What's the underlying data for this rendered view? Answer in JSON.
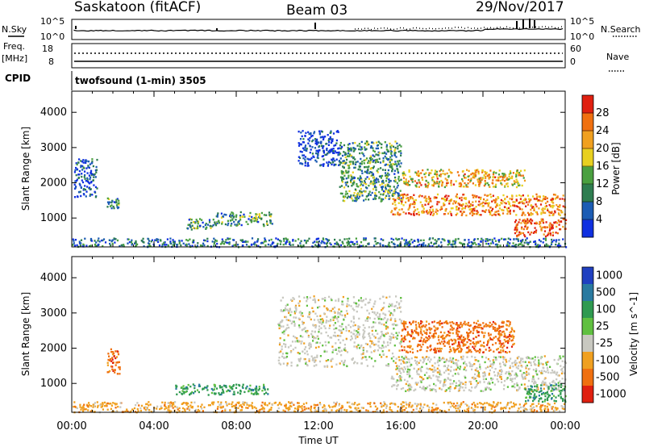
{
  "header": {
    "station": "Saskatoon (fitACF)",
    "beam": "Beam 03",
    "date": "29/Nov/2017"
  },
  "noise_panel": {
    "left_label": "N.Sky",
    "right_label": "N.Search",
    "left_ticks": [
      "10^5",
      "10^0"
    ],
    "right_ticks": [
      "10^5",
      "10^0"
    ]
  },
  "freq_panel": {
    "left_label_line1": "Freq.",
    "left_label_line2": "[MHz]",
    "right_label": "Nave",
    "left_ticks": [
      "18",
      "8"
    ],
    "right_ticks": [
      "60",
      "0"
    ]
  },
  "cpid_panel": {
    "label": "CPID",
    "program": "twofsound (1-min) 3505"
  },
  "axis": {
    "ylabel": "Slant Range [km]",
    "xlabel": "Time UT",
    "x_ticks": [
      "00:00",
      "04:00",
      "08:00",
      "12:00",
      "16:00",
      "20:00",
      "00:00"
    ],
    "y_ticks": [
      "4000",
      "3000",
      "2000",
      "1000"
    ]
  },
  "chart_data": [
    {
      "type": "heatmap",
      "title": "Power",
      "xlabel": "Time UT",
      "ylabel": "Slant Range [km]",
      "xlim_hours": [
        0,
        24
      ],
      "ylim_km": [
        180,
        4600
      ],
      "colorbar": {
        "label": "Power [dB]",
        "ticks": [
          "28",
          "24",
          "20",
          "16",
          "12",
          "8",
          "4"
        ],
        "range": [
          0,
          32
        ],
        "colors": [
          "#1030e0",
          "#1c5cb4",
          "#2e7d50",
          "#4aa040",
          "#e8d020",
          "#f0a020",
          "#f07010",
          "#e02010"
        ]
      },
      "regions": [
        {
          "t_start": 0.0,
          "t_end": 24.0,
          "r_min": 200,
          "r_max": 450,
          "level": 0.25
        },
        {
          "t_start": 0.1,
          "t_end": 1.2,
          "r_min": 1600,
          "r_max": 2700,
          "level": 0.15
        },
        {
          "t_start": 1.7,
          "t_end": 2.3,
          "r_min": 1300,
          "r_max": 1600,
          "level": 0.3
        },
        {
          "t_start": 5.5,
          "t_end": 7.0,
          "r_min": 700,
          "r_max": 1000,
          "level": 0.3
        },
        {
          "t_start": 7.0,
          "t_end": 9.8,
          "r_min": 800,
          "r_max": 1200,
          "level": 0.35
        },
        {
          "t_start": 11.0,
          "t_end": 13.0,
          "r_min": 2500,
          "r_max": 3500,
          "level": 0.1
        },
        {
          "t_start": 13.0,
          "t_end": 16.0,
          "r_min": 1500,
          "r_max": 3200,
          "level": 0.35
        },
        {
          "t_start": 15.5,
          "t_end": 24.0,
          "r_min": 1100,
          "r_max": 1700,
          "level": 0.75
        },
        {
          "t_start": 16.0,
          "t_end": 22.0,
          "r_min": 1900,
          "r_max": 2400,
          "level": 0.65
        },
        {
          "t_start": 21.5,
          "t_end": 24.0,
          "r_min": 500,
          "r_max": 1000,
          "level": 0.9
        }
      ]
    },
    {
      "type": "heatmap",
      "title": "Velocity",
      "xlabel": "Time UT",
      "ylabel": "Slant Range [km]",
      "xlim_hours": [
        0,
        24
      ],
      "ylim_km": [
        180,
        4600
      ],
      "colorbar": {
        "label": "Velocity [m s^-1]",
        "ticks": [
          "1000",
          "500",
          "100",
          "25",
          "-25",
          "-100",
          "-500",
          "-1000"
        ],
        "colors": [
          "#2040c0",
          "#2a7aa0",
          "#2f9a50",
          "#60c040",
          "#c8c8c0",
          "#f0a020",
          "#f07010",
          "#e02010"
        ]
      },
      "regions": [
        {
          "t_start": 0.0,
          "t_end": 24.0,
          "r_min": 200,
          "r_max": 500,
          "class": "-100"
        },
        {
          "t_start": 1.7,
          "t_end": 2.3,
          "r_min": 1300,
          "r_max": 2000,
          "class": "-500"
        },
        {
          "t_start": 5.0,
          "t_end": 9.5,
          "r_min": 700,
          "r_max": 1000,
          "class": "100"
        },
        {
          "t_start": 10.0,
          "t_end": 16.0,
          "r_min": 1500,
          "r_max": 3500,
          "class": "-25"
        },
        {
          "t_start": 15.5,
          "t_end": 24.0,
          "r_min": 800,
          "r_max": 1800,
          "class": "-25"
        },
        {
          "t_start": 16.0,
          "t_end": 21.5,
          "r_min": 1900,
          "r_max": 2800,
          "class": "-500"
        },
        {
          "t_start": 22.0,
          "t_end": 24.0,
          "r_min": 500,
          "r_max": 1000,
          "class": "100"
        }
      ]
    }
  ]
}
